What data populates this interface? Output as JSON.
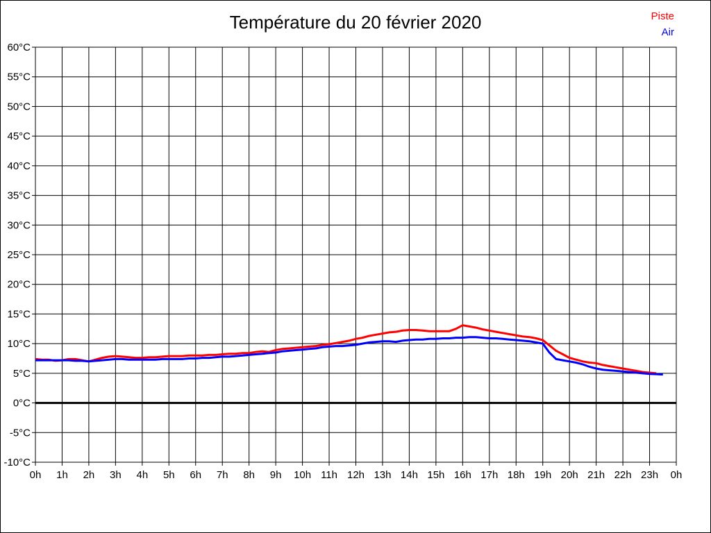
{
  "title": "Température du 20 février 2020",
  "colors": {
    "piste": "#ff0000",
    "air": "#0000ff",
    "grid": "#000000",
    "background": "#ffffff",
    "text": "#000000"
  },
  "legend": {
    "items": [
      {
        "label": "Piste",
        "color": "#ff0000"
      },
      {
        "label": "Air",
        "color": "#0000ff"
      }
    ]
  },
  "chart_data": {
    "type": "line",
    "title": "Température du 20 février 2020",
    "xlabel": "",
    "ylabel": "",
    "xlim": [
      0,
      24
    ],
    "ylim": [
      -10,
      60
    ],
    "ytick_step": 5,
    "ytick_labels": [
      "-10°C",
      "-5°C",
      "0°C",
      "5°C",
      "10°C",
      "15°C",
      "20°C",
      "25°C",
      "30°C",
      "35°C",
      "40°C",
      "45°C",
      "50°C",
      "55°C",
      "60°C"
    ],
    "xtick_labels": [
      "0h",
      "1h",
      "2h",
      "3h",
      "4h",
      "5h",
      "6h",
      "7h",
      "8h",
      "9h",
      "10h",
      "11h",
      "12h",
      "13h",
      "14h",
      "15h",
      "16h",
      "17h",
      "18h",
      "19h",
      "20h",
      "21h",
      "22h",
      "23h",
      "0h"
    ],
    "grid": true,
    "zero_line_value": 0,
    "legend_position": "top-right",
    "x_unit": "hours",
    "y_unit": "°C",
    "series": [
      {
        "name": "Piste",
        "color": "#ff0000",
        "points": [
          [
            0,
            7.4
          ],
          [
            0.25,
            7.3
          ],
          [
            0.5,
            7.3
          ],
          [
            0.75,
            7.1
          ],
          [
            1,
            7.2
          ],
          [
            1.25,
            7.4
          ],
          [
            1.5,
            7.4
          ],
          [
            1.75,
            7.2
          ],
          [
            2,
            7.0
          ],
          [
            2.25,
            7.3
          ],
          [
            2.5,
            7.6
          ],
          [
            2.75,
            7.8
          ],
          [
            3,
            7.9
          ],
          [
            3.25,
            7.8
          ],
          [
            3.5,
            7.7
          ],
          [
            3.75,
            7.6
          ],
          [
            4,
            7.6
          ],
          [
            4.25,
            7.7
          ],
          [
            4.5,
            7.7
          ],
          [
            4.75,
            7.8
          ],
          [
            5,
            7.9
          ],
          [
            5.25,
            7.9
          ],
          [
            5.5,
            7.9
          ],
          [
            5.75,
            8.0
          ],
          [
            6,
            8.0
          ],
          [
            6.25,
            8.0
          ],
          [
            6.5,
            8.1
          ],
          [
            6.75,
            8.1
          ],
          [
            7,
            8.2
          ],
          [
            7.25,
            8.3
          ],
          [
            7.5,
            8.3
          ],
          [
            7.75,
            8.4
          ],
          [
            8,
            8.4
          ],
          [
            8.25,
            8.6
          ],
          [
            8.5,
            8.7
          ],
          [
            8.75,
            8.6
          ],
          [
            9,
            8.9
          ],
          [
            9.25,
            9.1
          ],
          [
            9.5,
            9.2
          ],
          [
            9.75,
            9.3
          ],
          [
            10,
            9.4
          ],
          [
            10.25,
            9.5
          ],
          [
            10.5,
            9.6
          ],
          [
            10.75,
            9.8
          ],
          [
            11,
            9.9
          ],
          [
            11.25,
            10.1
          ],
          [
            11.5,
            10.3
          ],
          [
            11.75,
            10.5
          ],
          [
            12,
            10.8
          ],
          [
            12.25,
            11.0
          ],
          [
            12.5,
            11.3
          ],
          [
            12.75,
            11.5
          ],
          [
            13,
            11.7
          ],
          [
            13.25,
            11.9
          ],
          [
            13.5,
            12.0
          ],
          [
            13.75,
            12.2
          ],
          [
            14,
            12.3
          ],
          [
            14.25,
            12.3
          ],
          [
            14.5,
            12.2
          ],
          [
            14.75,
            12.1
          ],
          [
            15,
            12.1
          ],
          [
            15.25,
            12.1
          ],
          [
            15.5,
            12.1
          ],
          [
            15.75,
            12.5
          ],
          [
            16,
            13.1
          ],
          [
            16.25,
            12.9
          ],
          [
            16.5,
            12.7
          ],
          [
            16.75,
            12.4
          ],
          [
            17,
            12.2
          ],
          [
            17.25,
            12.0
          ],
          [
            17.5,
            11.8
          ],
          [
            17.75,
            11.6
          ],
          [
            18,
            11.4
          ],
          [
            18.25,
            11.2
          ],
          [
            18.5,
            11.1
          ],
          [
            18.75,
            10.9
          ],
          [
            19,
            10.6
          ],
          [
            19.25,
            9.7
          ],
          [
            19.5,
            8.8
          ],
          [
            19.75,
            8.2
          ],
          [
            20,
            7.6
          ],
          [
            20.25,
            7.3
          ],
          [
            20.5,
            7.0
          ],
          [
            20.75,
            6.8
          ],
          [
            21,
            6.7
          ],
          [
            21.25,
            6.4
          ],
          [
            21.5,
            6.2
          ],
          [
            21.75,
            6.0
          ],
          [
            22,
            5.8
          ],
          [
            22.25,
            5.6
          ],
          [
            22.5,
            5.4
          ],
          [
            22.75,
            5.2
          ],
          [
            23,
            5.1
          ],
          [
            23.25,
            5.0
          ]
        ]
      },
      {
        "name": "Air",
        "color": "#0000ff",
        "points": [
          [
            0,
            7.2
          ],
          [
            0.25,
            7.2
          ],
          [
            0.5,
            7.2
          ],
          [
            0.75,
            7.2
          ],
          [
            1,
            7.2
          ],
          [
            1.25,
            7.2
          ],
          [
            1.5,
            7.1
          ],
          [
            1.75,
            7.1
          ],
          [
            2,
            7.0
          ],
          [
            2.25,
            7.1
          ],
          [
            2.5,
            7.2
          ],
          [
            2.75,
            7.3
          ],
          [
            3,
            7.4
          ],
          [
            3.25,
            7.4
          ],
          [
            3.5,
            7.3
          ],
          [
            3.75,
            7.3
          ],
          [
            4,
            7.3
          ],
          [
            4.25,
            7.3
          ],
          [
            4.5,
            7.3
          ],
          [
            4.75,
            7.4
          ],
          [
            5,
            7.4
          ],
          [
            5.25,
            7.4
          ],
          [
            5.5,
            7.4
          ],
          [
            5.75,
            7.5
          ],
          [
            6,
            7.5
          ],
          [
            6.25,
            7.6
          ],
          [
            6.5,
            7.6
          ],
          [
            6.75,
            7.7
          ],
          [
            7,
            7.8
          ],
          [
            7.25,
            7.8
          ],
          [
            7.5,
            7.9
          ],
          [
            7.75,
            8.0
          ],
          [
            8,
            8.1
          ],
          [
            8.25,
            8.2
          ],
          [
            8.5,
            8.3
          ],
          [
            8.75,
            8.4
          ],
          [
            9,
            8.5
          ],
          [
            9.25,
            8.7
          ],
          [
            9.5,
            8.8
          ],
          [
            9.75,
            8.9
          ],
          [
            10,
            9.0
          ],
          [
            10.25,
            9.1
          ],
          [
            10.5,
            9.2
          ],
          [
            10.75,
            9.4
          ],
          [
            11,
            9.5
          ],
          [
            11.25,
            9.6
          ],
          [
            11.5,
            9.6
          ],
          [
            11.75,
            9.7
          ],
          [
            12,
            9.8
          ],
          [
            12.25,
            10.0
          ],
          [
            12.5,
            10.2
          ],
          [
            12.75,
            10.3
          ],
          [
            13,
            10.4
          ],
          [
            13.25,
            10.4
          ],
          [
            13.5,
            10.3
          ],
          [
            13.75,
            10.5
          ],
          [
            14,
            10.6
          ],
          [
            14.25,
            10.7
          ],
          [
            14.5,
            10.7
          ],
          [
            14.75,
            10.8
          ],
          [
            15,
            10.8
          ],
          [
            15.25,
            10.9
          ],
          [
            15.5,
            10.9
          ],
          [
            15.75,
            11.0
          ],
          [
            16,
            11.0
          ],
          [
            16.25,
            11.1
          ],
          [
            16.5,
            11.1
          ],
          [
            16.75,
            11.0
          ],
          [
            17,
            10.9
          ],
          [
            17.25,
            10.9
          ],
          [
            17.5,
            10.8
          ],
          [
            17.75,
            10.7
          ],
          [
            18,
            10.6
          ],
          [
            18.25,
            10.5
          ],
          [
            18.5,
            10.4
          ],
          [
            18.75,
            10.2
          ],
          [
            19,
            10.0
          ],
          [
            19.25,
            8.5
          ],
          [
            19.5,
            7.4
          ],
          [
            19.75,
            7.2
          ],
          [
            20,
            7.0
          ],
          [
            20.25,
            6.8
          ],
          [
            20.5,
            6.5
          ],
          [
            20.75,
            6.1
          ],
          [
            21,
            5.8
          ],
          [
            21.25,
            5.6
          ],
          [
            21.5,
            5.5
          ],
          [
            21.75,
            5.4
          ],
          [
            22,
            5.3
          ],
          [
            22.25,
            5.2
          ],
          [
            22.5,
            5.1
          ],
          [
            22.75,
            5.0
          ],
          [
            23,
            4.9
          ],
          [
            23.25,
            4.85
          ],
          [
            23.5,
            4.8
          ]
        ]
      }
    ]
  }
}
